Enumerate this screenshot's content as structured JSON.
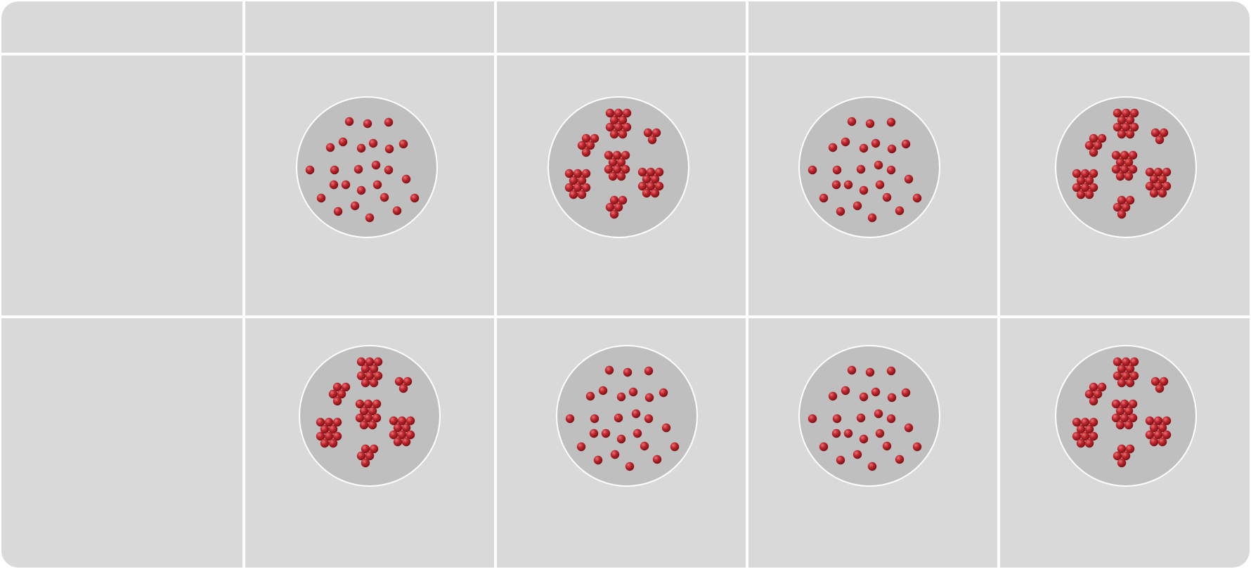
{
  "colors": {
    "panel": "#d9d9d9",
    "divider": "#ffffff",
    "dish_fill": "#bfbfbf",
    "dish_stroke": "#ffffff",
    "particle": "#c0272d",
    "particle_highlight": "#e8737a",
    "particle_shadow": "#7a1014"
  },
  "grid": {
    "header_cells": [
      "",
      "",
      "",
      "",
      ""
    ],
    "row_labels": [
      "",
      ""
    ]
  },
  "dishes": [
    {
      "id": "r1-c1",
      "pattern": "dispersed"
    },
    {
      "id": "r1-c2",
      "pattern": "clustered"
    },
    {
      "id": "r1-c3",
      "pattern": "dispersed"
    },
    {
      "id": "r1-c4",
      "pattern": "clustered"
    },
    {
      "id": "r2-c1",
      "pattern": "clustered"
    },
    {
      "id": "r2-c2",
      "pattern": "dispersed"
    },
    {
      "id": "r2-c3",
      "pattern": "dispersed"
    },
    {
      "id": "r2-c4",
      "pattern": "clustered"
    }
  ]
}
